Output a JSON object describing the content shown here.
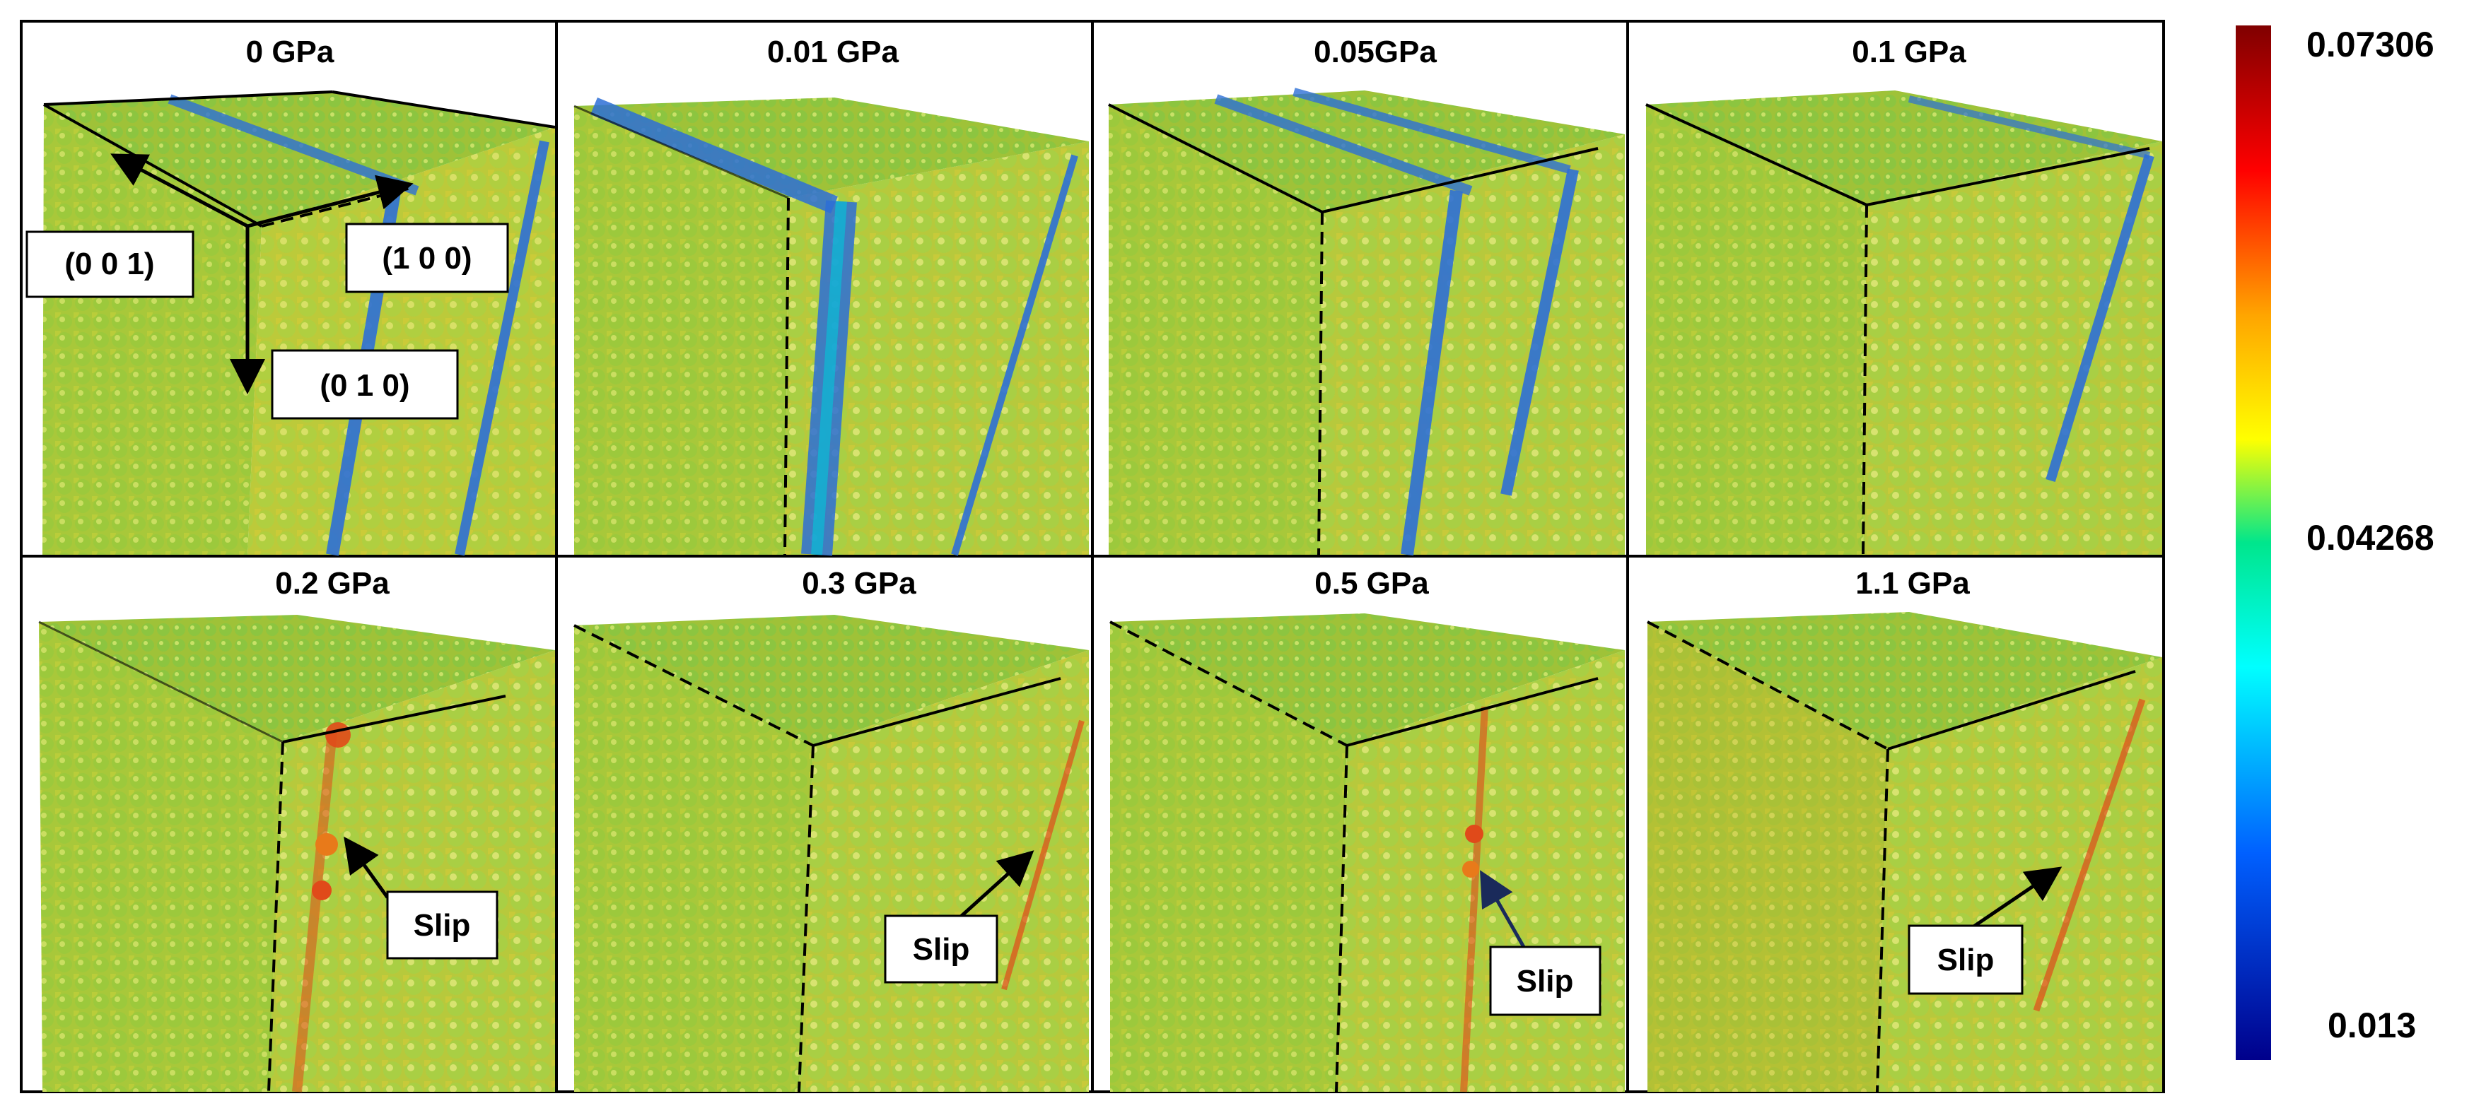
{
  "panels": [
    {
      "title": "0 GPa"
    },
    {
      "title": "0.01 GPa"
    },
    {
      "title": "0.05GPa"
    },
    {
      "title": "0.1 GPa"
    },
    {
      "title": "0.2 GPa"
    },
    {
      "title": "0.3 GPa"
    },
    {
      "title": "0.5 GPa"
    },
    {
      "title": "1.1 GPa"
    }
  ],
  "axis_labels": {
    "a001": "(0 0 1)",
    "a100": "(1 0 0)",
    "a010": "(0 1 0)"
  },
  "slip_label": "Slip",
  "colorbar": {
    "max_label": "0.07306",
    "mid_label": "0.04268",
    "min_label": "0.013",
    "colors": [
      "#800000",
      "#ff0000",
      "#ffa500",
      "#ffff00",
      "#00e68c",
      "#00ffff",
      "#0060ff",
      "#00008b"
    ]
  },
  "palette": {
    "base_green": "#8fc832",
    "yellow": "#d8d52a",
    "blue_band": "#2d6fd6",
    "slip_red": "#e04a1a"
  }
}
